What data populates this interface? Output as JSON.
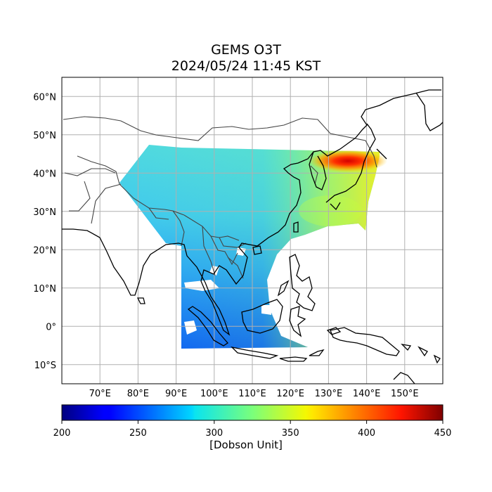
{
  "title": "GEMS O3T",
  "subtitle": "2024/05/24 11:45 KST",
  "map": {
    "lon_range": [
      60,
      160
    ],
    "lat_range": [
      -15,
      65
    ],
    "x_ticks": [
      {
        "value": 70,
        "label": "70°E"
      },
      {
        "value": 80,
        "label": "80°E"
      },
      {
        "value": 90,
        "label": "90°E"
      },
      {
        "value": 100,
        "label": "100°E"
      },
      {
        "value": 110,
        "label": "110°E"
      },
      {
        "value": 120,
        "label": "120°E"
      },
      {
        "value": 130,
        "label": "130°E"
      },
      {
        "value": 140,
        "label": "140°E"
      },
      {
        "value": 150,
        "label": "150°E"
      }
    ],
    "y_ticks": [
      {
        "value": 60,
        "label": "60°N"
      },
      {
        "value": 50,
        "label": "50°N"
      },
      {
        "value": 40,
        "label": "40°N"
      },
      {
        "value": 30,
        "label": "30°N"
      },
      {
        "value": 20,
        "label": "20°N"
      },
      {
        "value": 10,
        "label": "10°N"
      },
      {
        "value": 0,
        "label": "0°"
      },
      {
        "value": -10,
        "label": "10°S"
      }
    ],
    "gridlines": true,
    "coastline_color": "#000000",
    "border_color": "#444444"
  },
  "colorbar": {
    "min": 200,
    "max": 450,
    "colormap": "jet",
    "ticks": [
      "200",
      "250",
      "300",
      "350",
      "400",
      "450"
    ],
    "label": "[Dobson Unit]"
  }
}
